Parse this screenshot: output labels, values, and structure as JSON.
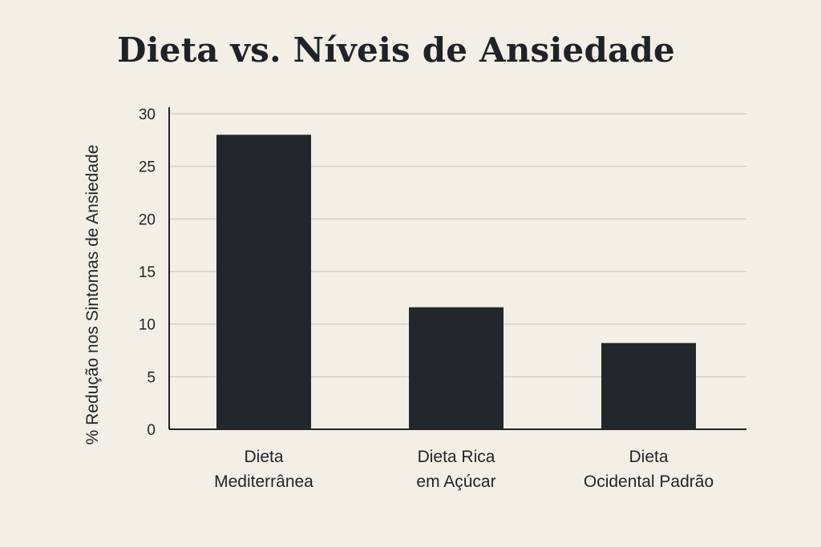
{
  "chart_data": {
    "type": "bar",
    "title": "Dieta vs. Níveis de Ansiedade",
    "ylabel": "% Redução nos Sintomas de Ansiedade",
    "xlabel": "",
    "categories": [
      [
        "Dieta",
        "Mediterrânea"
      ],
      [
        "Dieta Rica",
        "em Açúcar"
      ],
      [
        "Dieta",
        "Ocidental Padrão"
      ]
    ],
    "values": [
      28,
      11.6,
      8.2
    ],
    "ylim": [
      0,
      30
    ],
    "yticks": [
      0,
      5,
      10,
      15,
      20,
      25,
      30
    ],
    "grid": true,
    "bar_color": "#22272b",
    "grid_color": "#d4d0c6",
    "axis_color": "#1f2328",
    "background": "#f3efe6"
  }
}
